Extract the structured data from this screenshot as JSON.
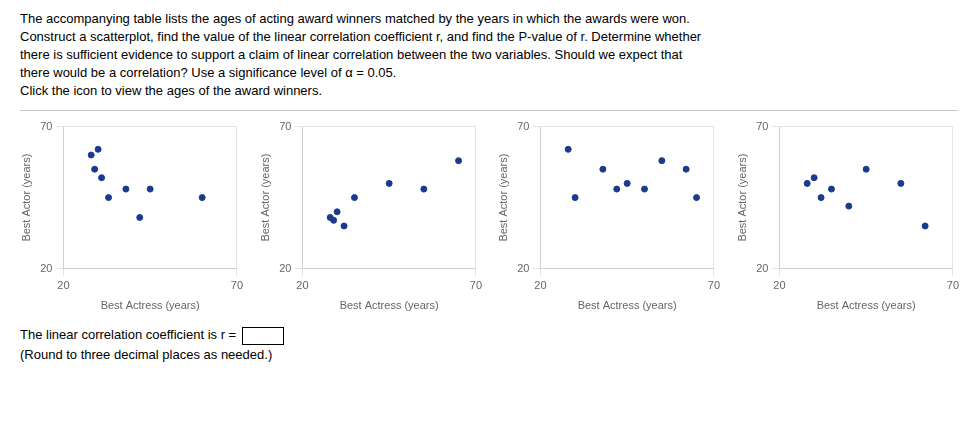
{
  "annotations": [
    "The accompanying table lists the ages of acting award winners matched by the years in which the awards were won.",
    "Construct a scatterplot, find the value of the linear correlation coefficient r, and find the P-value of r. Determine whether",
    "there is sufficient evidence to support a claim of linear correlation between the two variables. Should we expect that",
    "there would be a correlation? Use a significance level of α = 0.05.",
    "Click the icon to view the ages of the award winners.",
    "The linear correlation coefficient is r =",
    "(Round to three decimal places as needed.)"
  ],
  "chart_data": [
    {
      "type": "scatter",
      "xlabel": "Best Actress (years)",
      "ylabel": "Best Actor (years)",
      "x": [
        28,
        30,
        31,
        33,
        45,
        29,
        38,
        60,
        42
      ],
      "values": [
        60,
        62,
        52,
        45,
        48,
        55,
        48,
        45,
        38
      ],
      "color": "#1a3a8a",
      "xlim": [
        20,
        70
      ],
      "ylim": [
        20,
        70
      ],
      "xticks": [
        20,
        70
      ],
      "yticks": [
        20,
        70
      ],
      "grid": true
    },
    {
      "type": "scatter",
      "xlabel": "Best Actress (years)",
      "ylabel": "Best Actor (years)",
      "x": [
        28,
        30,
        29,
        35,
        45,
        55,
        65,
        32
      ],
      "values": [
        38,
        40,
        37,
        45,
        50,
        48,
        58,
        35
      ],
      "color": "#1a3a8a",
      "xlim": [
        20,
        70
      ],
      "ylim": [
        20,
        70
      ],
      "xticks": [
        20,
        70
      ],
      "yticks": [
        20,
        70
      ],
      "grid": true
    },
    {
      "type": "scatter",
      "xlabel": "Best Actress (years)",
      "ylabel": "Best Actor (years)",
      "x": [
        28,
        38,
        45,
        50,
        55,
        62,
        65,
        30,
        42
      ],
      "values": [
        62,
        55,
        50,
        48,
        58,
        55,
        45,
        45,
        48
      ],
      "color": "#1a3a8a",
      "xlim": [
        20,
        70
      ],
      "ylim": [
        20,
        70
      ],
      "xticks": [
        20,
        70
      ],
      "yticks": [
        20,
        70
      ],
      "grid": true
    },
    {
      "type": "scatter",
      "xlabel": "Best Actress (years)",
      "ylabel": "Best Actor (years)",
      "x": [
        28,
        30,
        35,
        40,
        45,
        55,
        62,
        32
      ],
      "values": [
        50,
        52,
        48,
        42,
        55,
        50,
        35,
        45
      ],
      "color": "#1a3a8a",
      "xlim": [
        20,
        70
      ],
      "ylim": [
        20,
        70
      ],
      "xticks": [
        20,
        70
      ],
      "yticks": [
        20,
        70
      ],
      "grid": true
    }
  ]
}
